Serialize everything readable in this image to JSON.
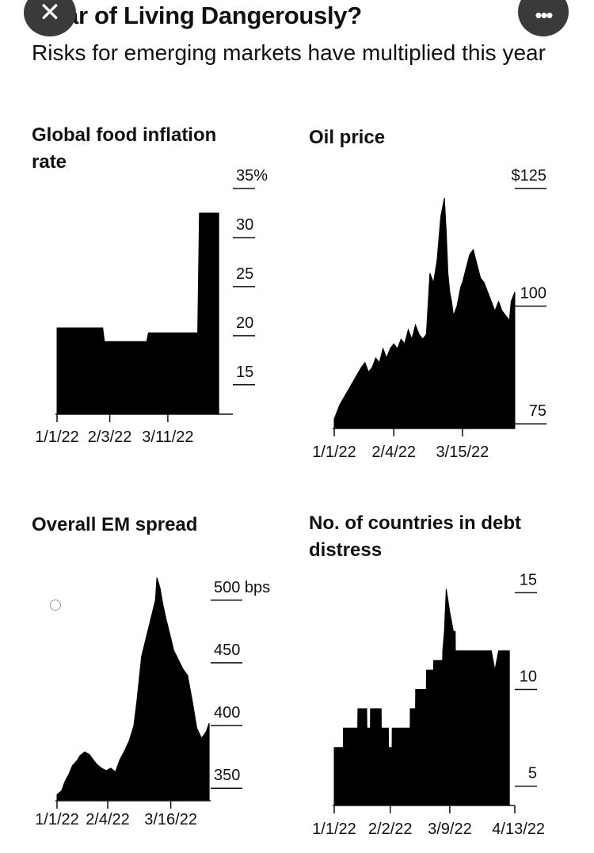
{
  "header": {
    "title": "ar of Living Dangerously?",
    "subtitle": "Risks for emerging markets have multiplied this year",
    "close_icon": "close-icon",
    "more_icon": "more-icon",
    "close_glyph": "✕",
    "more_glyph": "•••"
  },
  "chart_data": [
    {
      "type": "area",
      "title": "Global food inflation rate",
      "yunit_top": "35%",
      "yticks": [
        35,
        30,
        25,
        20,
        15
      ],
      "ytick_labels": [
        "35%",
        "30",
        "25",
        "20",
        "15"
      ],
      "ylim": [
        12,
        35
      ],
      "xlim": [
        0,
        100
      ],
      "xticks": [
        0,
        30,
        63
      ],
      "xtick_labels": [
        "1/1/22",
        "2/3/22",
        "3/11/22"
      ],
      "x": [
        0,
        26,
        27,
        51,
        52,
        80,
        81,
        92
      ],
      "y": [
        20.8,
        20.8,
        19.4,
        19.4,
        20.3,
        20.3,
        32.5,
        32.5
      ]
    },
    {
      "type": "area",
      "title": "Oil price",
      "yticks": [
        125,
        100,
        75
      ],
      "ytick_labels": [
        "$125",
        "100",
        "75"
      ],
      "ylim": [
        74,
        125
      ],
      "xlim": [
        0,
        100
      ],
      "xticks": [
        0,
        33,
        71
      ],
      "xtick_labels": [
        "1/1/22",
        "2/4/22",
        "3/15/22"
      ],
      "x": [
        0,
        3,
        6,
        9,
        12,
        15,
        17,
        19,
        21,
        23,
        25,
        27,
        29,
        31,
        33,
        35,
        37,
        39,
        41,
        43,
        45,
        47,
        49,
        51,
        53,
        55,
        57,
        59,
        61,
        62,
        63,
        64,
        65,
        66,
        68,
        70,
        71,
        73,
        75,
        77,
        79,
        81,
        83,
        85,
        87,
        89,
        91,
        93,
        95,
        97,
        98,
        99,
        100
      ],
      "y": [
        76,
        79,
        81,
        83,
        85,
        87,
        88,
        86,
        87,
        89,
        88,
        91,
        89,
        91,
        92,
        91,
        93,
        92,
        95,
        93,
        96,
        94,
        93,
        94,
        107,
        105,
        110,
        119,
        123,
        116,
        107,
        103,
        101,
        98,
        100,
        104,
        105,
        108,
        111,
        112,
        109,
        106,
        105,
        103,
        101,
        99,
        101,
        99,
        98,
        97,
        101,
        102,
        103
      ]
    },
    {
      "type": "area",
      "title": "Overall EM spread",
      "yticks": [
        500,
        450,
        400,
        350
      ],
      "ytick_labels": [
        "500 bps",
        "450",
        "400",
        "350"
      ],
      "ylim": [
        340,
        522
      ],
      "xlim": [
        0,
        100
      ],
      "xticks": [
        0,
        33,
        74
      ],
      "xtick_labels": [
        "1/1/22",
        "2/4/22",
        "3/16/22"
      ],
      "x": [
        0,
        3,
        5,
        8,
        10,
        13,
        15,
        18,
        21,
        24,
        26,
        29,
        32,
        35,
        38,
        41,
        44,
        47,
        50,
        52,
        55,
        58,
        60,
        62,
        64,
        65,
        67,
        69,
        71,
        74,
        76,
        78,
        80,
        82,
        85,
        88,
        91,
        94,
        97,
        99
      ],
      "y": [
        345,
        348,
        355,
        362,
        368,
        372,
        376,
        379,
        377,
        372,
        369,
        366,
        364,
        366,
        363,
        373,
        380,
        388,
        400,
        420,
        455,
        470,
        480,
        490,
        500,
        518,
        510,
        496,
        485,
        470,
        460,
        455,
        450,
        445,
        440,
        420,
        398,
        390,
        395,
        402
      ]
    },
    {
      "type": "area",
      "title": "No. of countries in debt distress",
      "yticks": [
        15,
        10,
        5
      ],
      "ytick_labels": [
        "15",
        "10",
        "5"
      ],
      "ylim": [
        4,
        16
      ],
      "xlim": [
        0,
        100
      ],
      "xticks": [
        0,
        31,
        64,
        100
      ],
      "xtick_labels": [
        "1/1/22",
        "2/2/22",
        "3/9/22",
        "4/13/22"
      ],
      "x": [
        0,
        5,
        5.1,
        13,
        13.1,
        18,
        18.1,
        20,
        20.1,
        26,
        26.1,
        30,
        30.1,
        32,
        32.1,
        42,
        42.1,
        45,
        45.1,
        51,
        51.1,
        55,
        55.1,
        60,
        60.1,
        61,
        62,
        64,
        66,
        67,
        67.1,
        87,
        89,
        91,
        91.1,
        97
      ],
      "y": [
        7,
        7,
        8,
        8,
        9,
        9,
        8,
        8,
        9,
        9,
        8,
        8,
        7,
        7,
        8,
        8,
        9,
        9,
        10,
        10,
        11,
        11,
        11.5,
        11.5,
        12,
        13,
        15.2,
        14,
        13,
        13,
        12,
        12,
        11,
        12,
        12,
        12
      ]
    }
  ]
}
